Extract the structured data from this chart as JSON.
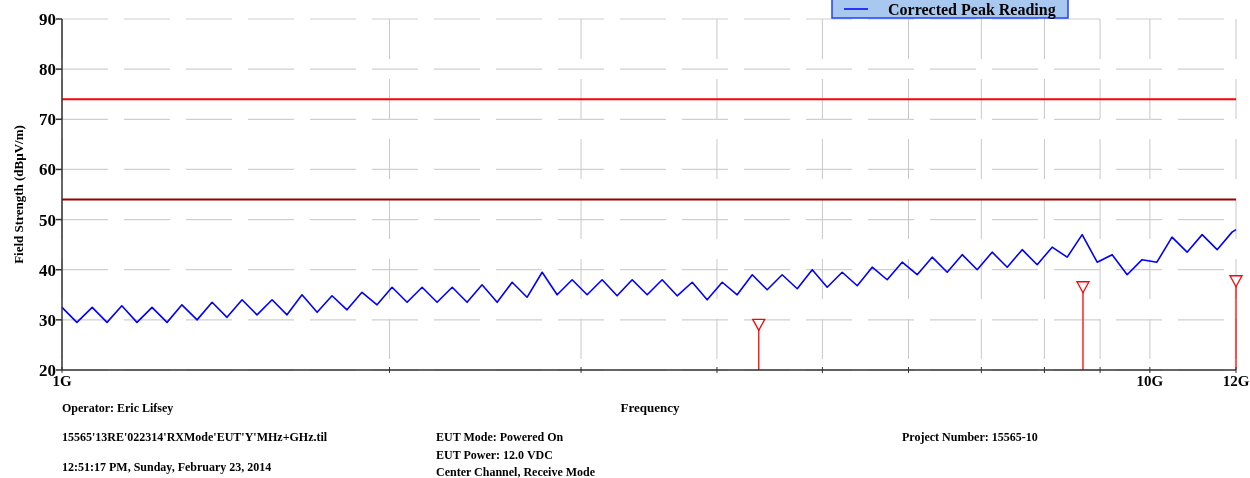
{
  "chart_data": {
    "type": "line",
    "xlabel": "Frequency",
    "ylabel": "Field Strength (dBµV/m)",
    "log": "x",
    "xlim": [
      1,
      12
    ],
    "xticks": [
      {
        "value": 1,
        "label": "1G"
      },
      {
        "value": 2,
        "label": null
      },
      {
        "value": 3,
        "label": null
      },
      {
        "value": 4,
        "label": null
      },
      {
        "value": 5,
        "label": null
      },
      {
        "value": 6,
        "label": null
      },
      {
        "value": 7,
        "label": null
      },
      {
        "value": 8,
        "label": null
      },
      {
        "value": 9,
        "label": null
      },
      {
        "value": 10,
        "label": "10G"
      },
      {
        "value": 12,
        "label": "12G"
      }
    ],
    "ylim": [
      20,
      90
    ],
    "yticks": [
      20,
      30,
      40,
      50,
      60,
      70,
      80,
      90
    ],
    "grid": true,
    "legend": "top right",
    "series": [
      {
        "name": "Corrected Peak Reading",
        "color": "#0000ff",
        "x": [
          1.0,
          1.032,
          1.066,
          1.1,
          1.135,
          1.172,
          1.21,
          1.249,
          1.289,
          1.331,
          1.374,
          1.418,
          1.464,
          1.511,
          1.56,
          1.61,
          1.662,
          1.716,
          1.771,
          1.828,
          1.887,
          1.948,
          2.011,
          2.076,
          2.143,
          2.212,
          2.284,
          2.357,
          2.433,
          2.512,
          2.593,
          2.676,
          2.763,
          2.852,
          2.944,
          3.039,
          3.137,
          3.238,
          3.343,
          3.451,
          3.562,
          3.677,
          3.796,
          3.918,
          4.045,
          4.175,
          4.31,
          4.449,
          4.592,
          4.741,
          4.894,
          5.051,
          5.214,
          5.383,
          5.556,
          5.735,
          5.92,
          6.111,
          6.308,
          6.512,
          6.722,
          6.939,
          7.162,
          7.394,
          7.632,
          7.878,
          8.132,
          8.395,
          8.665,
          8.945,
          9.233,
          9.531,
          9.837,
          10.15,
          10.48,
          10.82,
          11.17,
          11.53,
          11.9,
          12.0
        ],
        "values": [
          32.5,
          29.5,
          32.5,
          29.5,
          32.8,
          29.5,
          32.5,
          29.5,
          33,
          30,
          33.5,
          30.5,
          34,
          31,
          34,
          31,
          35,
          31.5,
          34.8,
          32,
          35.5,
          33,
          36.5,
          33.5,
          36.5,
          33.5,
          36.5,
          33.5,
          37,
          33.5,
          37.5,
          34.5,
          39.5,
          35,
          38,
          35,
          38,
          34.8,
          38,
          35,
          38,
          34.8,
          37.5,
          34,
          37.5,
          35,
          39,
          36,
          39,
          36.2,
          40,
          36.5,
          39.5,
          36.8,
          40.5,
          38,
          41.5,
          39,
          42.5,
          39.5,
          43,
          40,
          43.5,
          40.5,
          44,
          41,
          44.5,
          42.5,
          47,
          41.5,
          43,
          39,
          42,
          41.5,
          46.5,
          43.5,
          47,
          44,
          47.5,
          48
        ]
      },
      {
        "type": "lollipop",
        "color": "#ff0000",
        "marker": "triangle",
        "x": [
          4.37,
          8.68,
          12
        ],
        "values": [
          29,
          36.5,
          37.7
        ]
      }
    ],
    "ref_lines": [
      {
        "axis": "y",
        "value": 74,
        "color": "#ff0000"
      },
      {
        "axis": "y",
        "value": 54,
        "color": "#990000"
      }
    ],
    "annotations": [
      "Operator: Eric Lifsey",
      "15565'13RE'022314'RXMode'EUT'Y'MHz+GHz.til",
      "12:51:17 PM, Sunday, February 23, 2014",
      "EUT Mode: Powered On",
      "EUT Power: 12.0 VDC",
      "Center Channel, Receive Mode",
      "Project Number: 15565-10"
    ]
  }
}
